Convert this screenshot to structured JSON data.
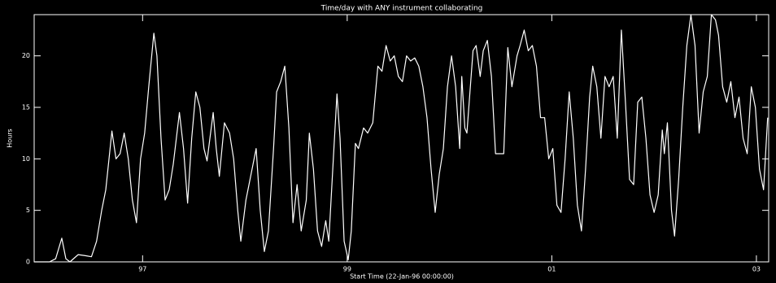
{
  "chart_data": {
    "type": "line",
    "title": "Time/day with ANY instrument collaborating",
    "x_label": "Start Time (22-Jan-96 00:00:00)",
    "y_label": "Hours",
    "background": "#000000",
    "xlim": [
      1995.94,
      2003.12
    ],
    "ylim": [
      0,
      24
    ],
    "xticks": [
      {
        "value": 1997,
        "label": "97"
      },
      {
        "value": 1999,
        "label": "99"
      },
      {
        "value": 2001,
        "label": "01"
      },
      {
        "value": 2003,
        "label": "03"
      }
    ],
    "yticks": [
      0,
      5,
      10,
      15,
      20
    ],
    "series": [
      {
        "name": "Hours",
        "color": "#ffffff",
        "x": [
          1995.94,
          1996.09,
          1996.15,
          1996.21,
          1996.25,
          1996.29,
          1996.37,
          1996.44,
          1996.5,
          1996.55,
          1996.6,
          1996.64,
          1996.7,
          1996.74,
          1996.78,
          1996.82,
          1996.86,
          1996.9,
          1996.94,
          1996.98,
          1997.02,
          1997.06,
          1997.11,
          1997.14,
          1997.18,
          1997.22,
          1997.26,
          1997.3,
          1997.36,
          1997.4,
          1997.44,
          1997.48,
          1997.52,
          1997.56,
          1997.6,
          1997.63,
          1997.69,
          1997.72,
          1997.75,
          1997.8,
          1997.85,
          1997.89,
          1997.93,
          1997.96,
          1998.01,
          1998.07,
          1998.11,
          1998.15,
          1998.19,
          1998.23,
          1998.28,
          1998.31,
          1998.35,
          1998.39,
          1998.43,
          1998.47,
          1998.51,
          1998.55,
          1998.6,
          1998.63,
          1998.67,
          1998.71,
          1998.75,
          1998.79,
          1998.82,
          1998.87,
          1998.9,
          1998.93,
          1998.97,
          1999.01,
          1999.04,
          1999.08,
          1999.11,
          1999.16,
          1999.2,
          1999.25,
          1999.3,
          1999.34,
          1999.38,
          1999.42,
          1999.46,
          1999.5,
          1999.54,
          1999.58,
          1999.62,
          1999.66,
          1999.7,
          1999.74,
          1999.78,
          1999.82,
          1999.86,
          1999.9,
          1999.94,
          1999.98,
          2000.02,
          2000.06,
          2000.1,
          2000.12,
          2000.15,
          2000.17,
          2000.23,
          2000.26,
          2000.3,
          2000.33,
          2000.37,
          2000.41,
          2000.45,
          2000.49,
          2000.53,
          2000.57,
          2000.61,
          2000.66,
          2000.69,
          2000.73,
          2000.77,
          2000.81,
          2000.85,
          2000.89,
          2000.93,
          2000.97,
          2001.01,
          2001.05,
          2001.09,
          2001.13,
          2001.17,
          2001.21,
          2001.25,
          2001.29,
          2001.33,
          2001.37,
          2001.4,
          2001.44,
          2001.48,
          2001.52,
          2001.56,
          2001.6,
          2001.64,
          2001.68,
          2001.72,
          2001.76,
          2001.8,
          2001.84,
          2001.88,
          2001.92,
          2001.96,
          2002.0,
          2002.04,
          2002.08,
          2002.1,
          2002.13,
          2002.17,
          2002.2,
          2002.24,
          2002.28,
          2002.32,
          2002.36,
          2002.4,
          2002.44,
          2002.48,
          2002.52,
          2002.56,
          2002.6,
          2002.63,
          2002.67,
          2002.71,
          2002.75,
          2002.79,
          2002.83,
          2002.87,
          2002.91,
          2002.95,
          2002.99,
          2003.03,
          2003.07,
          2003.11
        ],
        "values": [
          0,
          0,
          0.3,
          2.3,
          0.3,
          0,
          0.7,
          0.6,
          0.5,
          2,
          5,
          7,
          12.7,
          10,
          10.5,
          12.5,
          10,
          6,
          3.8,
          10,
          12.5,
          17,
          22.2,
          20,
          12,
          6,
          7,
          9.5,
          14.5,
          11,
          5.7,
          12,
          16.5,
          15,
          11,
          9.8,
          14.5,
          11,
          8.3,
          13.5,
          12.5,
          10,
          5,
          2,
          6,
          9,
          11,
          5,
          1,
          3,
          11,
          16.5,
          17.5,
          19,
          13,
          3.8,
          7.5,
          3,
          6,
          12.5,
          9,
          3,
          1.5,
          4,
          2,
          11,
          16.3,
          12,
          2,
          0.2,
          3,
          11.5,
          11,
          13,
          12.5,
          13.5,
          19,
          18.5,
          21,
          19.5,
          20,
          18,
          17.5,
          20,
          19.5,
          19.8,
          19,
          17,
          14,
          9,
          4.8,
          8.5,
          11,
          17,
          20,
          17,
          11,
          18,
          13,
          12.5,
          20.5,
          21,
          18,
          20.5,
          21.5,
          18,
          10.5,
          10.5,
          10.5,
          20.8,
          17,
          20,
          21,
          22.5,
          20.5,
          21,
          19,
          14,
          14,
          10,
          11,
          5.5,
          4.8,
          10,
          16.5,
          12,
          5.5,
          3,
          9,
          16,
          19,
          17,
          12,
          18,
          17,
          18,
          12,
          22.5,
          15.5,
          8,
          7.5,
          15.5,
          16,
          12,
          6.5,
          4.8,
          6.5,
          12.8,
          10.5,
          13.5,
          5,
          2.5,
          8,
          15,
          21,
          24,
          21,
          12.5,
          16.5,
          18,
          24,
          23.5,
          22,
          17,
          15.5,
          17.5,
          14,
          16,
          12,
          10.5,
          17,
          15,
          9,
          7,
          14
        ]
      }
    ]
  }
}
